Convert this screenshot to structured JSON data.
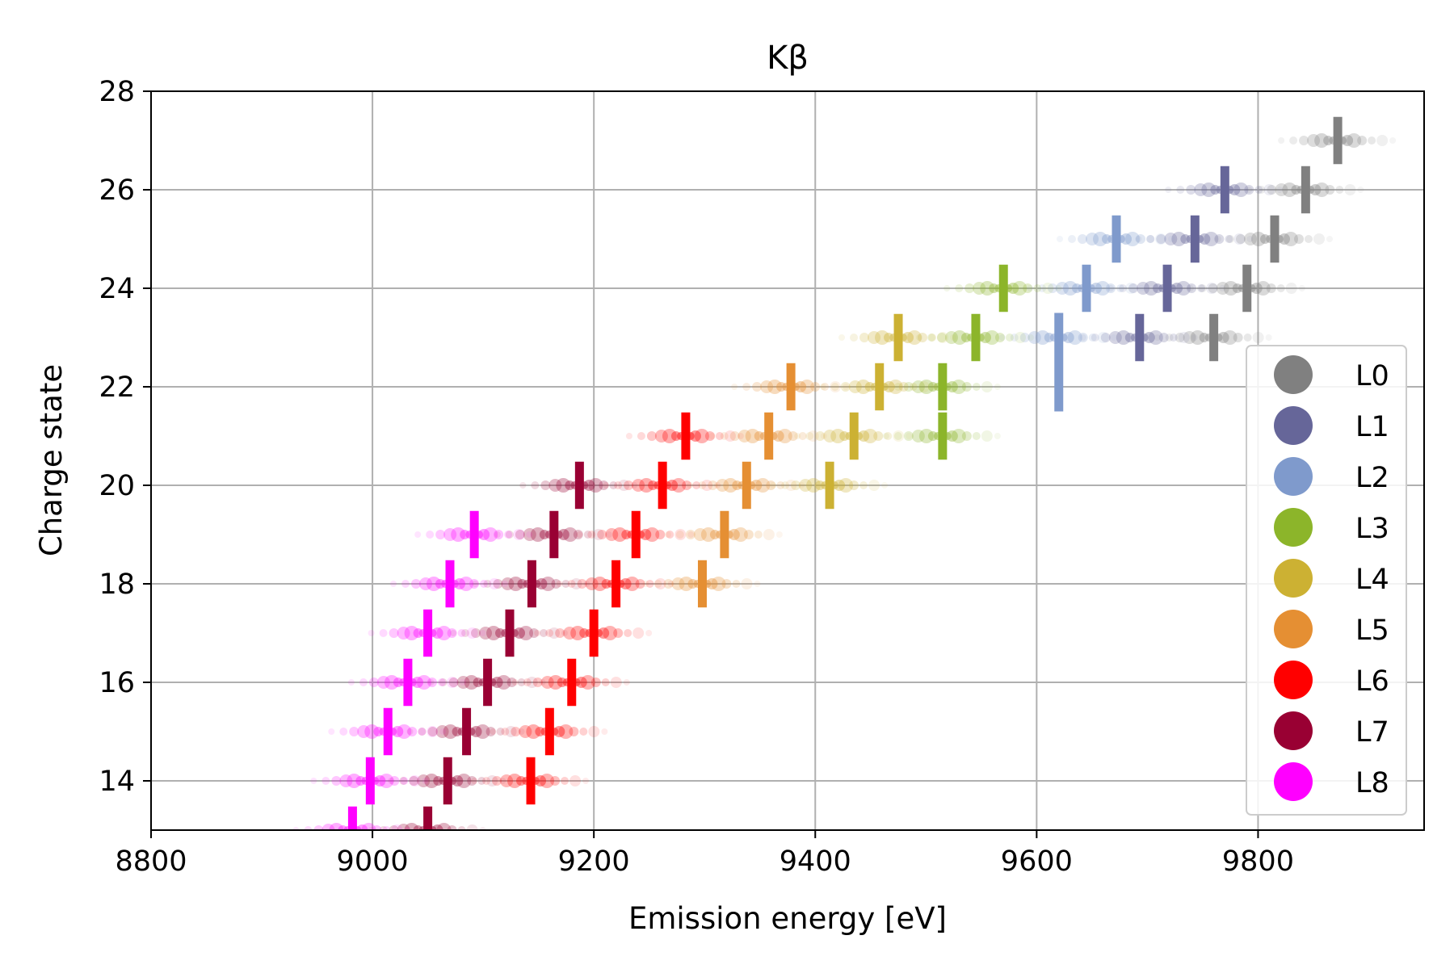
{
  "chart_data": {
    "type": "scatter",
    "title": "Kβ",
    "xlabel": "Emission energy [eV]",
    "ylabel": "Charge state",
    "xlim": [
      8800,
      9950
    ],
    "ylim": [
      13,
      28
    ],
    "x_ticks": [
      8800,
      9000,
      9200,
      9400,
      9600,
      9800
    ],
    "y_ticks": [
      14,
      16,
      18,
      20,
      22,
      24,
      26,
      28
    ],
    "grid": true,
    "legend_position": "lower-right",
    "series": [
      {
        "name": "L0",
        "color": "#808080",
        "points": [
          [
            9760,
            23
          ],
          [
            9790,
            24
          ],
          [
            9815,
            25
          ],
          [
            9843,
            26
          ],
          [
            9872,
            27
          ]
        ]
      },
      {
        "name": "L1",
        "color": "#666699",
        "points": [
          [
            9693,
            23
          ],
          [
            9718,
            24
          ],
          [
            9743,
            25
          ],
          [
            9770,
            26
          ]
        ]
      },
      {
        "name": "L2",
        "color": "#7f9acc",
        "points": [
          [
            9620,
            22.5
          ],
          [
            9645,
            24
          ],
          [
            9672,
            25
          ]
        ]
      },
      {
        "name": "L3",
        "color": "#8cb52a",
        "points": [
          [
            9515,
            21
          ],
          [
            9515,
            22
          ],
          [
            9545,
            23
          ],
          [
            9570,
            24
          ]
        ]
      },
      {
        "name": "L4",
        "color": "#ccb133",
        "points": [
          [
            9413,
            20
          ],
          [
            9435,
            21
          ],
          [
            9458,
            22
          ],
          [
            9475,
            23
          ]
        ]
      },
      {
        "name": "L5",
        "color": "#e58f33",
        "points": [
          [
            9298,
            18
          ],
          [
            9318,
            19
          ],
          [
            9338,
            20
          ],
          [
            9358,
            21
          ],
          [
            9378,
            22
          ]
        ]
      },
      {
        "name": "L6",
        "color": "#ff0000",
        "points": [
          [
            9143,
            14
          ],
          [
            9160,
            15
          ],
          [
            9180,
            16
          ],
          [
            9200,
            17
          ],
          [
            9220,
            18
          ],
          [
            9238,
            19
          ],
          [
            9262,
            20
          ],
          [
            9283,
            21
          ]
        ]
      },
      {
        "name": "L7",
        "color": "#990033",
        "points": [
          [
            9050,
            13
          ],
          [
            9068,
            14
          ],
          [
            9085,
            15
          ],
          [
            9104,
            16
          ],
          [
            9124,
            17
          ],
          [
            9144,
            18
          ],
          [
            9164,
            19
          ],
          [
            9187,
            20
          ]
        ]
      },
      {
        "name": "L8",
        "color": "#ff00ff",
        "points": [
          [
            8982,
            13
          ],
          [
            8998,
            14
          ],
          [
            9014,
            15
          ],
          [
            9032,
            16
          ],
          [
            9050,
            17
          ],
          [
            9070,
            18
          ],
          [
            9092,
            19
          ]
        ]
      }
    ]
  }
}
